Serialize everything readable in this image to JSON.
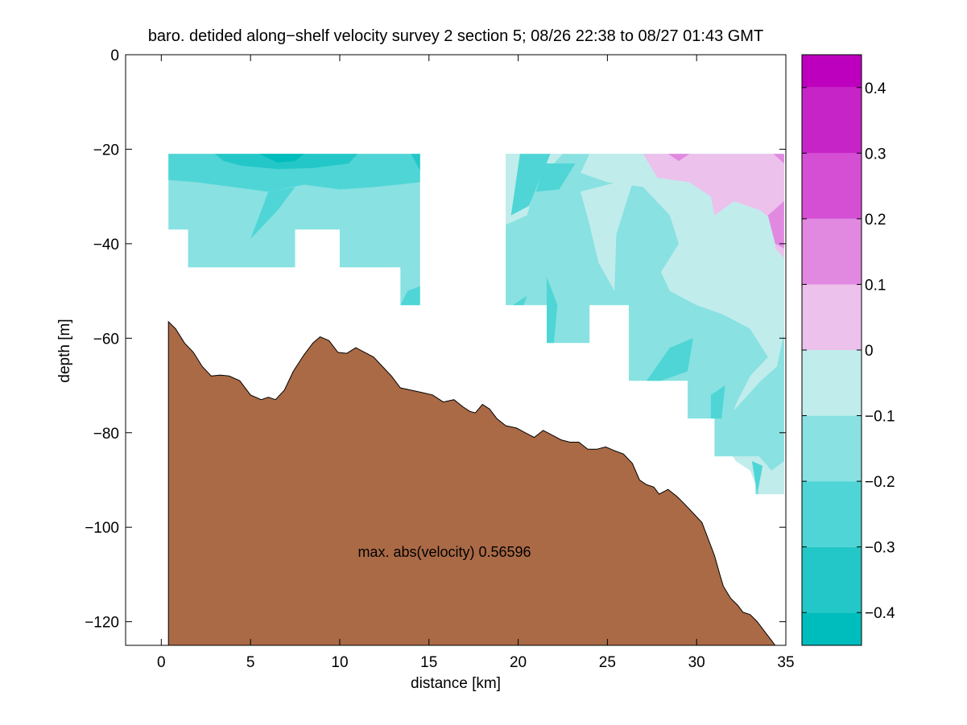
{
  "chart_data": {
    "type": "filled-contour",
    "title": "baro. detided along−shelf velocity survey 2 section 5; 08/26 22:38 to 08/27 01:43 GMT",
    "xlabel": "distance [km]",
    "ylabel": "depth [m]",
    "annotation": "max. abs(velocity) 0.56596",
    "xlim": [
      -2,
      35
    ],
    "ylim": [
      -125,
      0
    ],
    "xticks": [
      0,
      5,
      10,
      15,
      20,
      25,
      30,
      35
    ],
    "xtick_labels": [
      "0",
      "5",
      "10",
      "15",
      "20",
      "25",
      "30",
      "35"
    ],
    "yticks": [
      0,
      -20,
      -40,
      -60,
      -80,
      -100,
      -120
    ],
    "ytick_labels": [
      "0",
      "−20",
      "−40",
      "−60",
      "−80",
      "−100",
      "−120"
    ],
    "bathymetry_color": "#aa6a46",
    "bathymetry": [
      [
        0.4,
        -56.5
      ],
      [
        0.8,
        -58
      ],
      [
        1.3,
        -61
      ],
      [
        1.8,
        -63
      ],
      [
        2.3,
        -66
      ],
      [
        2.8,
        -68
      ],
      [
        3.3,
        -67.8
      ],
      [
        3.8,
        -68
      ],
      [
        4.4,
        -69
      ],
      [
        5.0,
        -72
      ],
      [
        5.6,
        -73
      ],
      [
        6.0,
        -72.5
      ],
      [
        6.4,
        -73
      ],
      [
        6.9,
        -71
      ],
      [
        7.4,
        -67
      ],
      [
        8.0,
        -63.5
      ],
      [
        8.5,
        -61
      ],
      [
        8.9,
        -59.7
      ],
      [
        9.4,
        -60.5
      ],
      [
        9.9,
        -63
      ],
      [
        10.4,
        -63.2
      ],
      [
        10.9,
        -62
      ],
      [
        11.4,
        -63
      ],
      [
        11.9,
        -64
      ],
      [
        12.4,
        -66
      ],
      [
        12.9,
        -68
      ],
      [
        13.4,
        -70.5
      ],
      [
        14.0,
        -71
      ],
      [
        14.6,
        -71.5
      ],
      [
        15.2,
        -72
      ],
      [
        15.8,
        -73.5
      ],
      [
        16.4,
        -73
      ],
      [
        16.9,
        -74.5
      ],
      [
        17.3,
        -75.5
      ],
      [
        17.6,
        -75.8
      ],
      [
        18.0,
        -74
      ],
      [
        18.4,
        -75
      ],
      [
        18.8,
        -77
      ],
      [
        19.3,
        -78.5
      ],
      [
        19.9,
        -79
      ],
      [
        20.4,
        -80
      ],
      [
        20.9,
        -81
      ],
      [
        21.4,
        -79.5
      ],
      [
        21.9,
        -80.5
      ],
      [
        22.4,
        -81.5
      ],
      [
        22.9,
        -82
      ],
      [
        23.4,
        -82
      ],
      [
        23.9,
        -83.5
      ],
      [
        24.4,
        -83.5
      ],
      [
        24.9,
        -83
      ],
      [
        25.4,
        -83.8
      ],
      [
        25.9,
        -84.5
      ],
      [
        26.4,
        -86.5
      ],
      [
        26.8,
        -90
      ],
      [
        27.2,
        -91
      ],
      [
        27.6,
        -91.5
      ],
      [
        27.9,
        -93
      ],
      [
        28.4,
        -92
      ],
      [
        28.9,
        -93.5
      ],
      [
        29.3,
        -95
      ],
      [
        29.8,
        -97
      ],
      [
        30.3,
        -99
      ],
      [
        30.7,
        -103
      ],
      [
        31.0,
        -106
      ],
      [
        31.3,
        -110
      ],
      [
        31.5,
        -112.5
      ],
      [
        31.9,
        -115
      ],
      [
        32.3,
        -116.5
      ],
      [
        32.6,
        -118
      ],
      [
        33.0,
        -118.5
      ],
      [
        33.4,
        -120
      ],
      [
        33.8,
        -122
      ],
      [
        34.2,
        -124
      ],
      [
        34.4,
        -125
      ]
    ],
    "colorbar": {
      "levels": [
        -0.45,
        -0.4,
        -0.3,
        -0.2,
        -0.1,
        0,
        0.1,
        0.2,
        0.3,
        0.4,
        0.45
      ],
      "tick_values": [
        -0.4,
        -0.3,
        -0.2,
        -0.1,
        0,
        0.1,
        0.2,
        0.3,
        0.4
      ],
      "tick_labels": [
        "−0.4",
        "−0.3",
        "−0.2",
        "−0.1",
        "0",
        "0.1",
        "0.2",
        "0.3",
        "0.4"
      ],
      "colors": [
        "#00bdbd",
        "#24c7c7",
        "#4fd5d5",
        "#89e1e1",
        "#c1ecec",
        "#ecc1ec",
        "#e189e1",
        "#d54fd5",
        "#c724c7",
        "#bd00bd"
      ]
    }
  }
}
